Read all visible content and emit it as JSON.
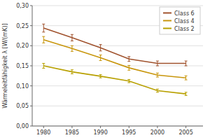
{
  "chart_data": {
    "type": "line",
    "y_label": "Wärmeleitfähigkeit λ  [W/(mK)]",
    "x": [
      1980,
      1985,
      1990,
      1995,
      2000,
      2005
    ],
    "series": [
      {
        "name": "Class 6",
        "color": "#a0522d",
        "values": [
          0.244,
          0.22,
          0.195,
          0.167,
          0.156,
          0.156
        ],
        "errors": [
          0.01,
          0.008,
          0.008,
          0.006,
          0.006,
          0.006
        ]
      },
      {
        "name": "Class 4",
        "color": "#c8960c",
        "values": [
          0.215,
          0.193,
          0.17,
          0.145,
          0.127,
          0.12
        ],
        "errors": [
          0.008,
          0.007,
          0.007,
          0.006,
          0.005,
          0.005
        ]
      },
      {
        "name": "Class 2",
        "color": "#b8a000",
        "values": [
          0.15,
          0.135,
          0.124,
          0.112,
          0.088,
          0.08
        ],
        "errors": [
          0.006,
          0.005,
          0.004,
          0.004,
          0.004,
          0.004
        ]
      }
    ],
    "xlim": [
      1978,
      2008
    ],
    "xticks": [
      1980,
      1985,
      1990,
      1995,
      2000,
      2005
    ],
    "ylim": [
      0.0,
      0.3
    ],
    "yticks": [
      {
        "value": 0.0,
        "label": "0,00"
      },
      {
        "value": 0.05,
        "label": "0,05"
      },
      {
        "value": 0.1,
        "label": "0,10"
      },
      {
        "value": 0.15,
        "label": "0,15"
      },
      {
        "value": 0.2,
        "label": "0,20"
      },
      {
        "value": 0.25,
        "label": "0,25"
      },
      {
        "value": 0.3,
        "label": "0,30"
      }
    ],
    "grid": true,
    "legend": "upper right"
  }
}
